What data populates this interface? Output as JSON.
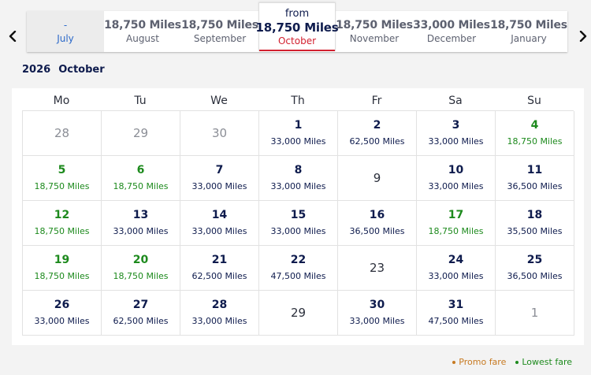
{
  "months": [
    {
      "price": "-",
      "name": "July",
      "state": "disabled"
    },
    {
      "price": "18,750 Miles",
      "name": "August",
      "state": "normal"
    },
    {
      "price": "18,750 Miles",
      "name": "September",
      "state": "normal"
    },
    {
      "from": "from",
      "price": "18,750 Miles",
      "name": "October",
      "state": "active"
    },
    {
      "price": "18,750 Miles",
      "name": "November",
      "state": "normal"
    },
    {
      "price": "33,000 Miles",
      "name": "December",
      "state": "normal"
    },
    {
      "price": "18,750 Miles",
      "name": "January",
      "state": "normal"
    }
  ],
  "calendar": {
    "year": "2026",
    "month": "October",
    "weekdays": [
      "Mo",
      "Tu",
      "We",
      "Th",
      "Fr",
      "Sa",
      "Su"
    ],
    "days": [
      {
        "day": "28",
        "type": "outside"
      },
      {
        "day": "29",
        "type": "outside"
      },
      {
        "day": "30",
        "type": "outside"
      },
      {
        "day": "1",
        "miles": "33,000 Miles",
        "type": "normal"
      },
      {
        "day": "2",
        "miles": "62,500 Miles",
        "type": "normal"
      },
      {
        "day": "3",
        "miles": "33,000 Miles",
        "type": "normal"
      },
      {
        "day": "4",
        "miles": "18,750 Miles",
        "type": "low"
      },
      {
        "day": "5",
        "miles": "18,750 Miles",
        "type": "low"
      },
      {
        "day": "6",
        "miles": "18,750 Miles",
        "type": "low"
      },
      {
        "day": "7",
        "miles": "33,000 Miles",
        "type": "normal"
      },
      {
        "day": "8",
        "miles": "33,000 Miles",
        "type": "normal"
      },
      {
        "day": "9",
        "type": "noprice"
      },
      {
        "day": "10",
        "miles": "33,000 Miles",
        "type": "normal"
      },
      {
        "day": "11",
        "miles": "36,500 Miles",
        "type": "normal"
      },
      {
        "day": "12",
        "miles": "18,750 Miles",
        "type": "low"
      },
      {
        "day": "13",
        "miles": "33,000 Miles",
        "type": "normal"
      },
      {
        "day": "14",
        "miles": "33,000 Miles",
        "type": "normal"
      },
      {
        "day": "15",
        "miles": "33,000 Miles",
        "type": "normal"
      },
      {
        "day": "16",
        "miles": "36,500 Miles",
        "type": "normal"
      },
      {
        "day": "17",
        "miles": "18,750 Miles",
        "type": "low"
      },
      {
        "day": "18",
        "miles": "35,500 Miles",
        "type": "normal"
      },
      {
        "day": "19",
        "miles": "18,750 Miles",
        "type": "low"
      },
      {
        "day": "20",
        "miles": "18,750 Miles",
        "type": "low"
      },
      {
        "day": "21",
        "miles": "62,500 Miles",
        "type": "normal"
      },
      {
        "day": "22",
        "miles": "47,500 Miles",
        "type": "normal"
      },
      {
        "day": "23",
        "type": "noprice"
      },
      {
        "day": "24",
        "miles": "33,000 Miles",
        "type": "normal"
      },
      {
        "day": "25",
        "miles": "36,500 Miles",
        "type": "normal"
      },
      {
        "day": "26",
        "miles": "33,000 Miles",
        "type": "normal"
      },
      {
        "day": "27",
        "miles": "62,500 Miles",
        "type": "normal"
      },
      {
        "day": "28",
        "miles": "33,000 Miles",
        "type": "normal"
      },
      {
        "day": "29",
        "type": "noprice"
      },
      {
        "day": "30",
        "miles": "33,000 Miles",
        "type": "normal"
      },
      {
        "day": "31",
        "miles": "47,500 Miles",
        "type": "normal"
      },
      {
        "day": "1",
        "type": "outside"
      }
    ]
  },
  "legend": {
    "promo": "Promo fare",
    "lowest": "Lowest fare"
  },
  "colors": {
    "navy": "#0e1b4d",
    "active_red": "#d2202f",
    "lowest_green": "#1d8a1d",
    "promo_orange": "#c77a22",
    "disabled_blue": "#2c69c9"
  },
  "icons": {
    "prev": "chevron-left-icon",
    "next": "chevron-right-icon"
  }
}
